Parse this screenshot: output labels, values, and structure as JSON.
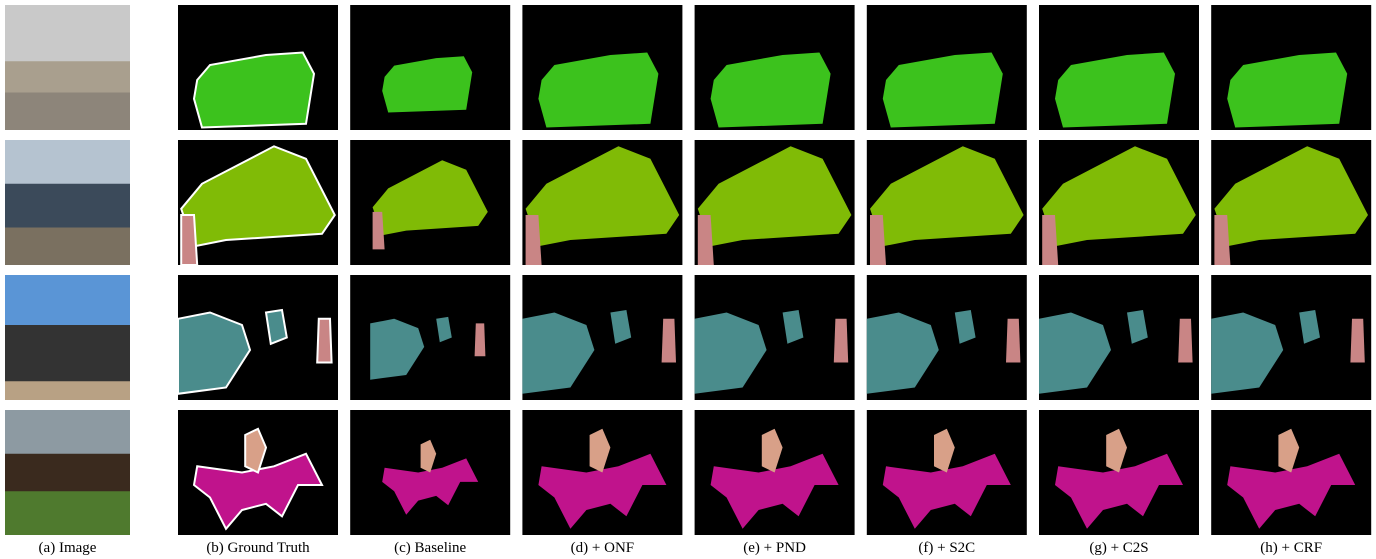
{
  "figure": {
    "captions": [
      "(a) Image",
      "(b) Ground Truth",
      "(c) Baseline",
      "(d) + ONF",
      "(e)  + PND",
      "(f) + S2C",
      "(g) + C2S",
      "(h) + CRF"
    ]
  }
}
